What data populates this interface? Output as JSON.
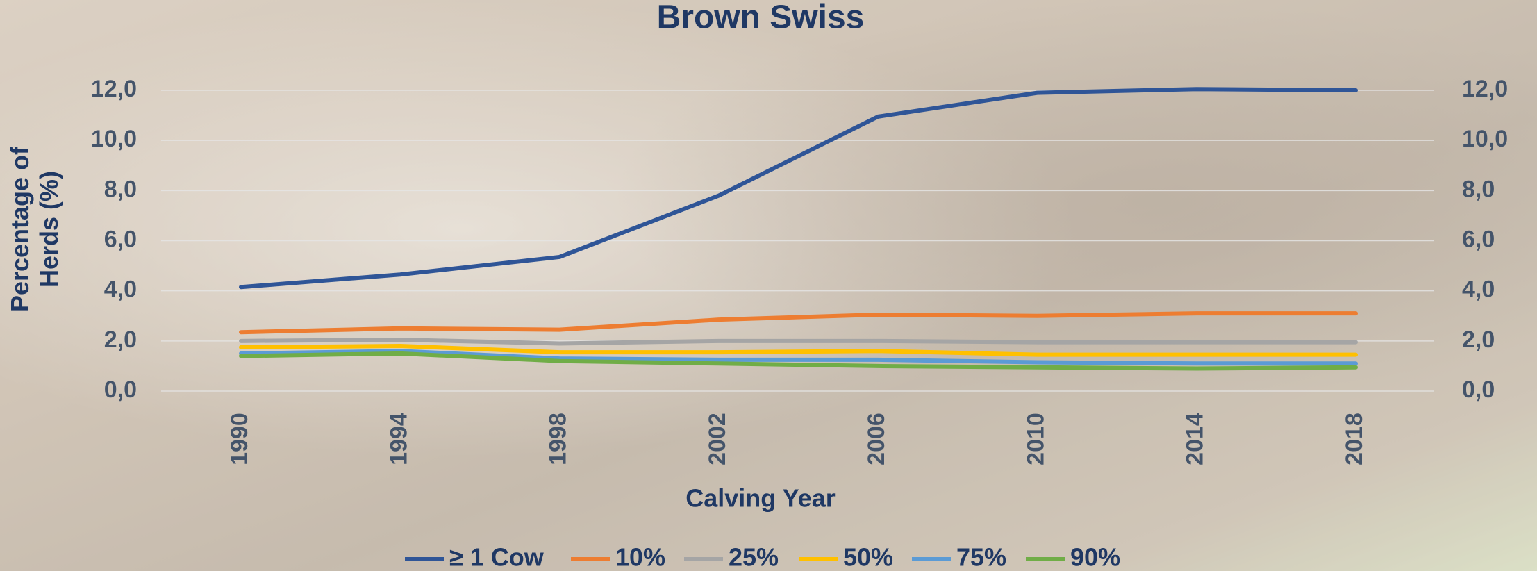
{
  "chart_data": {
    "type": "line",
    "title": "Brown Swiss",
    "y_label": "Percentage of Herds (%)",
    "x_label": "Calving Year",
    "categories": [
      "1990",
      "1994",
      "1998",
      "2002",
      "2006",
      "2010",
      "2014",
      "2018"
    ],
    "series": [
      {
        "name": "≥ 1 Cow",
        "color": "#2f5597",
        "values": [
          4.15,
          4.65,
          5.35,
          7.8,
          10.95,
          11.9,
          12.05,
          12.0
        ]
      },
      {
        "name": "10%",
        "color": "#ed7d31",
        "values": [
          2.35,
          2.5,
          2.45,
          2.85,
          3.05,
          3.0,
          3.1,
          3.1
        ]
      },
      {
        "name": "25%",
        "color": "#a5a5a5",
        "values": [
          2.0,
          2.05,
          1.9,
          2.0,
          2.0,
          1.95,
          1.95,
          1.95
        ]
      },
      {
        "name": "50%",
        "color": "#ffc000",
        "values": [
          1.75,
          1.8,
          1.55,
          1.55,
          1.6,
          1.45,
          1.45,
          1.45
        ]
      },
      {
        "name": "75%",
        "color": "#5b9bd5",
        "values": [
          1.5,
          1.6,
          1.3,
          1.25,
          1.25,
          1.15,
          1.1,
          1.1
        ]
      },
      {
        "name": "90%",
        "color": "#70ad47",
        "values": [
          1.4,
          1.5,
          1.2,
          1.1,
          1.0,
          0.95,
          0.9,
          0.95
        ]
      }
    ],
    "ylim": [
      0,
      12
    ],
    "yticks": [
      {
        "value": 0,
        "label": "0,0"
      },
      {
        "value": 2,
        "label": "2,0"
      },
      {
        "value": 4,
        "label": "4,0"
      },
      {
        "value": 6,
        "label": "6,0"
      },
      {
        "value": 8,
        "label": "8,0"
      },
      {
        "value": 10,
        "label": "10,0"
      },
      {
        "value": 12,
        "label": "12,0"
      }
    ],
    "y2lim": [
      0,
      12
    ],
    "y2ticks": [
      {
        "value": 0,
        "label": "0,0"
      },
      {
        "value": 2,
        "label": "2,0"
      },
      {
        "value": 4,
        "label": "4,0"
      },
      {
        "value": 6,
        "label": "6,0"
      },
      {
        "value": 8,
        "label": "8,0"
      },
      {
        "value": 10,
        "label": "10,0"
      },
      {
        "value": 12,
        "label": "12,0"
      }
    ],
    "grid": true,
    "legend": "bottom"
  }
}
